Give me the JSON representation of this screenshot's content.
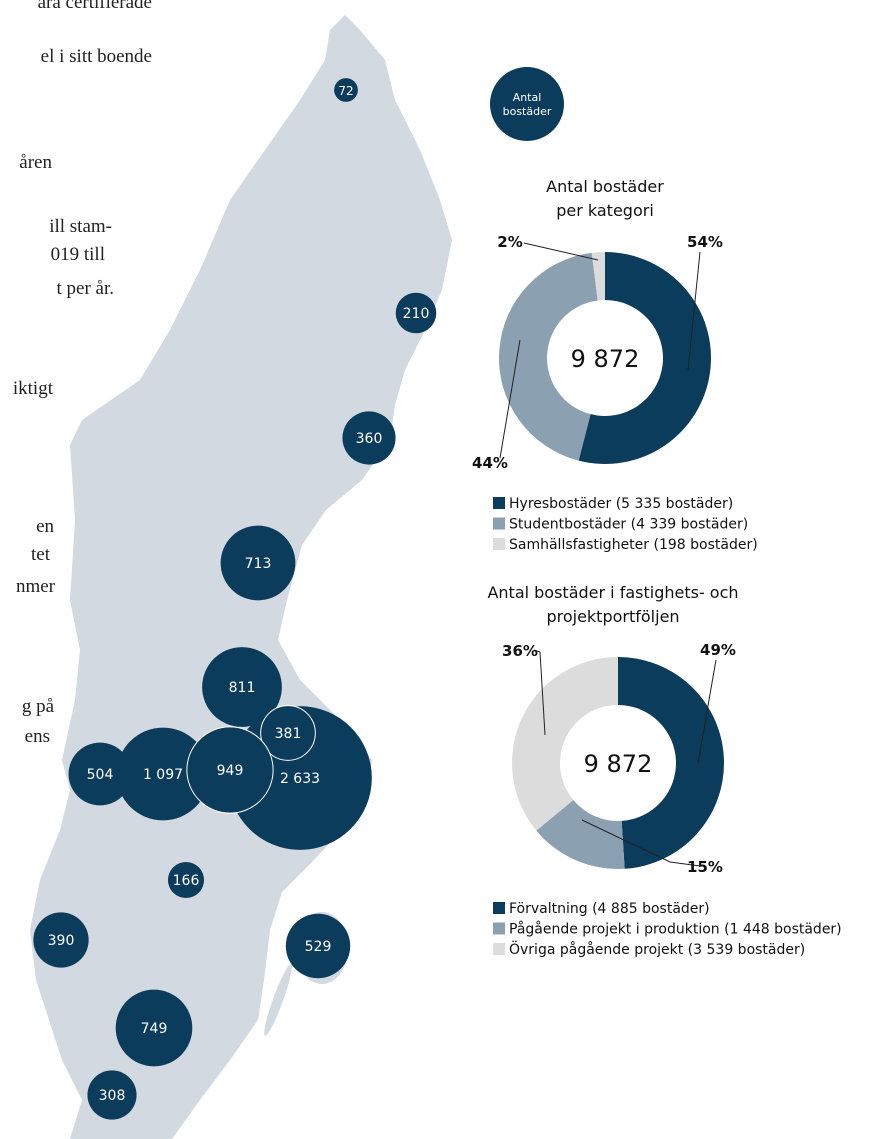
{
  "text_fragments": [
    "ara certifierade",
    "el i sitt boende",
    "åren",
    "ill stam-",
    "019 till",
    "t per år.",
    "iktigt",
    "en",
    "tet",
    "nmer",
    "g på",
    "ens"
  ],
  "map": {
    "legend_label": [
      "Antal",
      "bostäder"
    ],
    "values": [
      72,
      210,
      360,
      713,
      811,
      381,
      504,
      1097,
      949,
      2633,
      166,
      390,
      529,
      749,
      308
    ],
    "value_labels": [
      "72",
      "210",
      "360",
      "713",
      "811",
      "381",
      "504",
      "1 097",
      "949",
      "2 633",
      "166",
      "390",
      "529",
      "749",
      "308"
    ],
    "color": "#0b3c5b"
  },
  "chart_data": [
    {
      "type": "donut",
      "title": [
        "Antal bostäder",
        "per kategori"
      ],
      "center_label": "9 872",
      "categories": [
        "Hyresbostäder (5 335 bostäder)",
        "Studentbostäder (4 339 bostäder)",
        "Samhällsfastigheter (198 bostäder)"
      ],
      "values": [
        54,
        44,
        2
      ],
      "value_labels": [
        "54%",
        "44%",
        "2%"
      ],
      "colors": [
        "#0b3c5b",
        "#8ba0b1",
        "#dcdcdc"
      ]
    },
    {
      "type": "donut",
      "title": [
        "Antal bostäder i fastighets- och",
        "projektportföljen"
      ],
      "center_label": "9 872",
      "categories": [
        "Förvaltning (4 885 bostäder)",
        "Pågående projekt i produktion (1 448 bostäder)",
        "Övriga pågående projekt (3 539 bostäder)"
      ],
      "values": [
        49,
        15,
        36
      ],
      "value_labels": [
        "49%",
        "15%",
        "36%"
      ],
      "colors": [
        "#0b3c5b",
        "#8ba0b1",
        "#dcdcdc"
      ]
    }
  ]
}
